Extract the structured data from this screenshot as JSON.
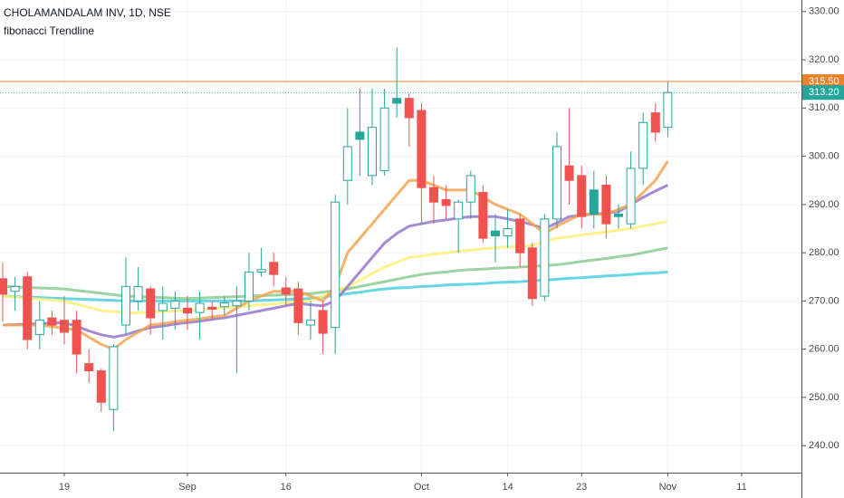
{
  "chart_data": {
    "type": "candlestick",
    "title": "CHOLAMANDALAM INV, 1D, NSE",
    "subtitle": "fibonacci Trendline",
    "categories": [
      null,
      null,
      null,
      null,
      null,
      "19",
      null,
      null,
      null,
      null,
      null,
      null,
      null,
      null,
      null,
      "Sep",
      null,
      null,
      null,
      null,
      null,
      null,
      null,
      "16",
      null,
      null,
      null,
      null,
      null,
      null,
      null,
      null,
      null,
      null,
      "Oct",
      null,
      null,
      null,
      null,
      null,
      null,
      "14",
      null,
      null,
      null,
      null,
      null,
      "23",
      null,
      null,
      null,
      null,
      null,
      null,
      "Nov",
      null,
      null,
      null,
      null,
      null,
      "11"
    ],
    "open": [
      274.6,
      272,
      275,
      263,
      266.5,
      266,
      266,
      257,
      255.5,
      247.5,
      265,
      270,
      272.5,
      268,
      268.5,
      268.5,
      267.6,
      268.7,
      268.8,
      269,
      270,
      276,
      278,
      272.7,
      272.5,
      265,
      268,
      264.5,
      295,
      305,
      296,
      297,
      312,
      312,
      309.5,
      293.5,
      291,
      287,
      290.5,
      292.5,
      284.5,
      283.5,
      287,
      281,
      271,
      287,
      298,
      296,
      293,
      294,
      288,
      286,
      297.5,
      309,
      306,
      null,
      null,
      null,
      null,
      null,
      null
    ],
    "high": [
      278,
      275,
      276,
      270,
      268,
      271,
      268,
      260,
      256,
      261,
      279,
      277,
      273,
      273,
      272,
      271,
      272,
      270,
      271,
      273,
      280,
      281,
      280,
      275,
      274,
      270,
      270,
      292,
      310,
      314,
      314,
      314,
      322.5,
      313,
      311,
      296,
      294,
      291,
      297,
      294,
      288,
      289,
      288,
      282,
      288,
      305,
      310,
      298,
      297,
      296,
      290,
      301,
      309,
      311,
      315.5,
      null,
      null,
      null,
      null,
      null,
      null
    ],
    "low": [
      265.7,
      268,
      260,
      260,
      263,
      261,
      255,
      253,
      247,
      243,
      263,
      268,
      263,
      262,
      264,
      264,
      262,
      266,
      267,
      255,
      268,
      275,
      273,
      269,
      263,
      262,
      259,
      259,
      290,
      296,
      294,
      296,
      308,
      302,
      286,
      286,
      287,
      280,
      287,
      282,
      278,
      281,
      277,
      269,
      270,
      285,
      290,
      285,
      285,
      283,
      285,
      285,
      294,
      303,
      304,
      null,
      null,
      null,
      null,
      null,
      null
    ],
    "close": [
      271.4,
      273,
      262,
      266,
      265,
      263.5,
      259,
      255.5,
      249,
      260.5,
      273,
      273,
      266.5,
      269.5,
      270,
      267.5,
      269.5,
      268.3,
      269.6,
      270,
      276,
      276.5,
      275.5,
      271.4,
      265.5,
      266,
      263.3,
      290.5,
      302,
      303.5,
      306,
      310,
      311,
      308,
      293.5,
      290.5,
      289.8,
      290.5,
      296,
      283,
      283.5,
      285,
      280,
      270.5,
      287,
      302,
      295,
      287.5,
      288,
      286,
      287.5,
      297.5,
      307,
      305,
      313.2,
      null,
      null,
      null,
      null,
      null,
      null
    ],
    "up_color": "#26a69a",
    "down_color": "#ef5350",
    "series": [
      {
        "color": "#4dd0e1",
        "values": [
          271,
          270.9,
          270.8,
          270.7,
          270.6,
          270.5,
          270.4,
          270.3,
          270.2,
          270.1,
          270,
          270,
          270,
          270,
          270,
          270,
          270,
          270,
          270,
          270,
          270,
          270.1,
          270.2,
          270.3,
          270.4,
          270.5,
          270.8,
          271.2,
          271.5,
          271.8,
          272.2,
          272.5,
          272.7,
          272.8,
          273,
          273.1,
          273.3,
          273.4,
          273.5,
          273.6,
          273.8,
          273.9,
          274,
          274.2,
          274.3,
          274.5,
          274.7,
          274.8,
          275,
          275.2,
          275.3,
          275.5,
          275.7,
          275.8,
          276,
          null,
          null,
          null,
          null,
          null,
          null
        ]
      },
      {
        "color": "#8ccb8f",
        "values": [
          273,
          272.9,
          272.8,
          272.7,
          272.6,
          272.5,
          272.2,
          271.9,
          271.6,
          271.3,
          271,
          270.9,
          270.8,
          270.7,
          270.6,
          270.5,
          270.6,
          270.7,
          270.8,
          270.9,
          271,
          271.1,
          271.2,
          271.3,
          271.4,
          271.5,
          271.8,
          272.2,
          272.5,
          273,
          273.5,
          274,
          274.5,
          275,
          275.5,
          275.8,
          276,
          276.3,
          276.5,
          276.6,
          276.8,
          276.9,
          277,
          277.2,
          277.3,
          277.5,
          277.8,
          278.2,
          278.5,
          278.8,
          279.2,
          279.5,
          280,
          280.5,
          281,
          null,
          null,
          null,
          null,
          null,
          null
        ]
      },
      {
        "color": "#fff07a",
        "values": [
          271,
          270.8,
          270.6,
          270.4,
          270.2,
          270,
          269.3,
          268.7,
          268,
          267.8,
          267.5,
          267.6,
          267.7,
          267.8,
          267.9,
          268,
          268.2,
          268.4,
          268.6,
          268.8,
          269,
          269.2,
          269.4,
          269.6,
          269.8,
          270,
          271,
          272,
          273,
          274.3,
          275.7,
          277,
          278,
          279,
          279.3,
          279.7,
          280,
          280.3,
          280.5,
          280.8,
          281,
          281.2,
          281.3,
          281.5,
          282.3,
          283,
          283.3,
          283.7,
          284,
          284.3,
          284.7,
          285,
          285.5,
          286,
          286.5,
          null,
          null,
          null,
          null,
          null,
          null
        ]
      },
      {
        "color": "#9575cd",
        "values": [
          265,
          265.1,
          265.2,
          265.3,
          265.4,
          265.5,
          264.7,
          263.8,
          263,
          262.5,
          263,
          263.8,
          264.5,
          264.8,
          265.2,
          265.5,
          265.8,
          266.2,
          266.5,
          267,
          267.5,
          268,
          268.5,
          269,
          269.5,
          269.2,
          269,
          270,
          273,
          276,
          279,
          282,
          284,
          285.5,
          286,
          286.5,
          286.8,
          287.2,
          287.5,
          287.5,
          287.5,
          287,
          286.5,
          285.8,
          285,
          286.2,
          287.5,
          287.8,
          288,
          288.2,
          288.5,
          290,
          291.5,
          292.8,
          294,
          null,
          null,
          null,
          null,
          null,
          null
        ]
      },
      {
        "color": "#f2a451",
        "values": [
          265,
          265,
          265,
          265,
          264.7,
          264.3,
          264,
          262.5,
          261,
          260,
          262,
          263.5,
          265,
          265.3,
          265.7,
          266,
          266.3,
          266.7,
          267,
          268.5,
          270,
          271,
          272,
          272,
          272,
          271,
          270,
          273,
          280,
          283,
          286,
          289,
          292,
          295,
          295,
          294,
          293,
          293,
          293,
          291.5,
          290,
          289,
          288,
          286,
          284,
          285.5,
          286.8,
          288,
          288,
          288,
          289,
          290,
          292.5,
          295,
          299,
          null,
          null,
          null,
          null,
          null,
          null
        ]
      }
    ],
    "price_lines": [
      {
        "value": 315.5,
        "label": "315.50",
        "color": "#e8822b",
        "style": "solid"
      },
      {
        "value": 313.2,
        "label": "313.20",
        "color": "#26a69a",
        "style": "dotted"
      }
    ],
    "ylim": [
      234.4,
      332.4
    ],
    "yticks": [
      {
        "value": 240,
        "label": "240.00"
      },
      {
        "value": 250,
        "label": "250.00"
      },
      {
        "value": 260,
        "label": "260.00"
      },
      {
        "value": 270,
        "label": "270.00"
      },
      {
        "value": 280,
        "label": "280.00"
      },
      {
        "value": 290,
        "label": "290.00"
      },
      {
        "value": 300,
        "label": "300.00"
      },
      {
        "value": 310,
        "label": "310.00"
      },
      {
        "value": 320,
        "label": "320.00"
      },
      {
        "value": 330,
        "label": "330.00"
      }
    ],
    "grid": true
  }
}
